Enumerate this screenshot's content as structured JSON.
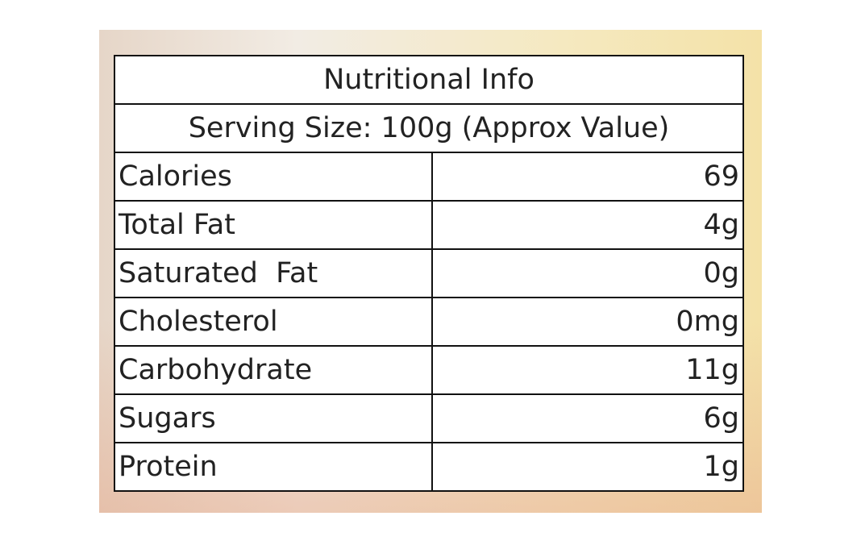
{
  "table": {
    "title": "Nutritional Info",
    "subtitle": "Serving Size: 100g (Approx Value)",
    "rows": [
      [
        "Calories",
        "69"
      ],
      [
        "Total Fat",
        "4g"
      ],
      [
        "Saturated  Fat",
        "0g"
      ],
      [
        "Cholesterol",
        "0mg"
      ],
      [
        "Carbohydrate",
        "11g"
      ],
      [
        "Sugars",
        "6g"
      ],
      [
        "Protein",
        "1g"
      ]
    ]
  }
}
